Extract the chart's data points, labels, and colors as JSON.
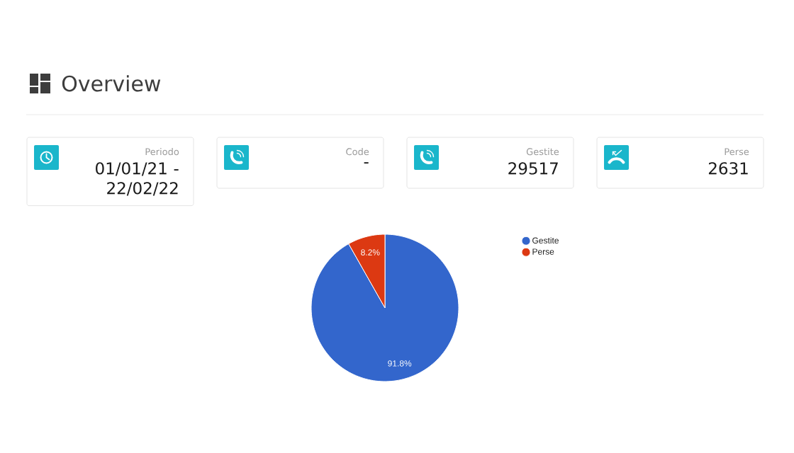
{
  "chart_data": [
    {
      "type": "other",
      "title": "Overview",
      "annotations": [
        "Periodo",
        "01/01/21 - 22/02/22",
        "Code",
        "-",
        "Gestite",
        "29517",
        "Perse",
        "2631"
      ]
    },
    {
      "type": "pie",
      "categories": [
        "Gestite",
        "Perse"
      ],
      "values": [
        91.8,
        8.2
      ],
      "colors": [
        "#3366cc",
        "#dc3912"
      ],
      "value_labels": [
        "91.8%",
        "8.2%"
      ],
      "legend": "right"
    }
  ]
}
